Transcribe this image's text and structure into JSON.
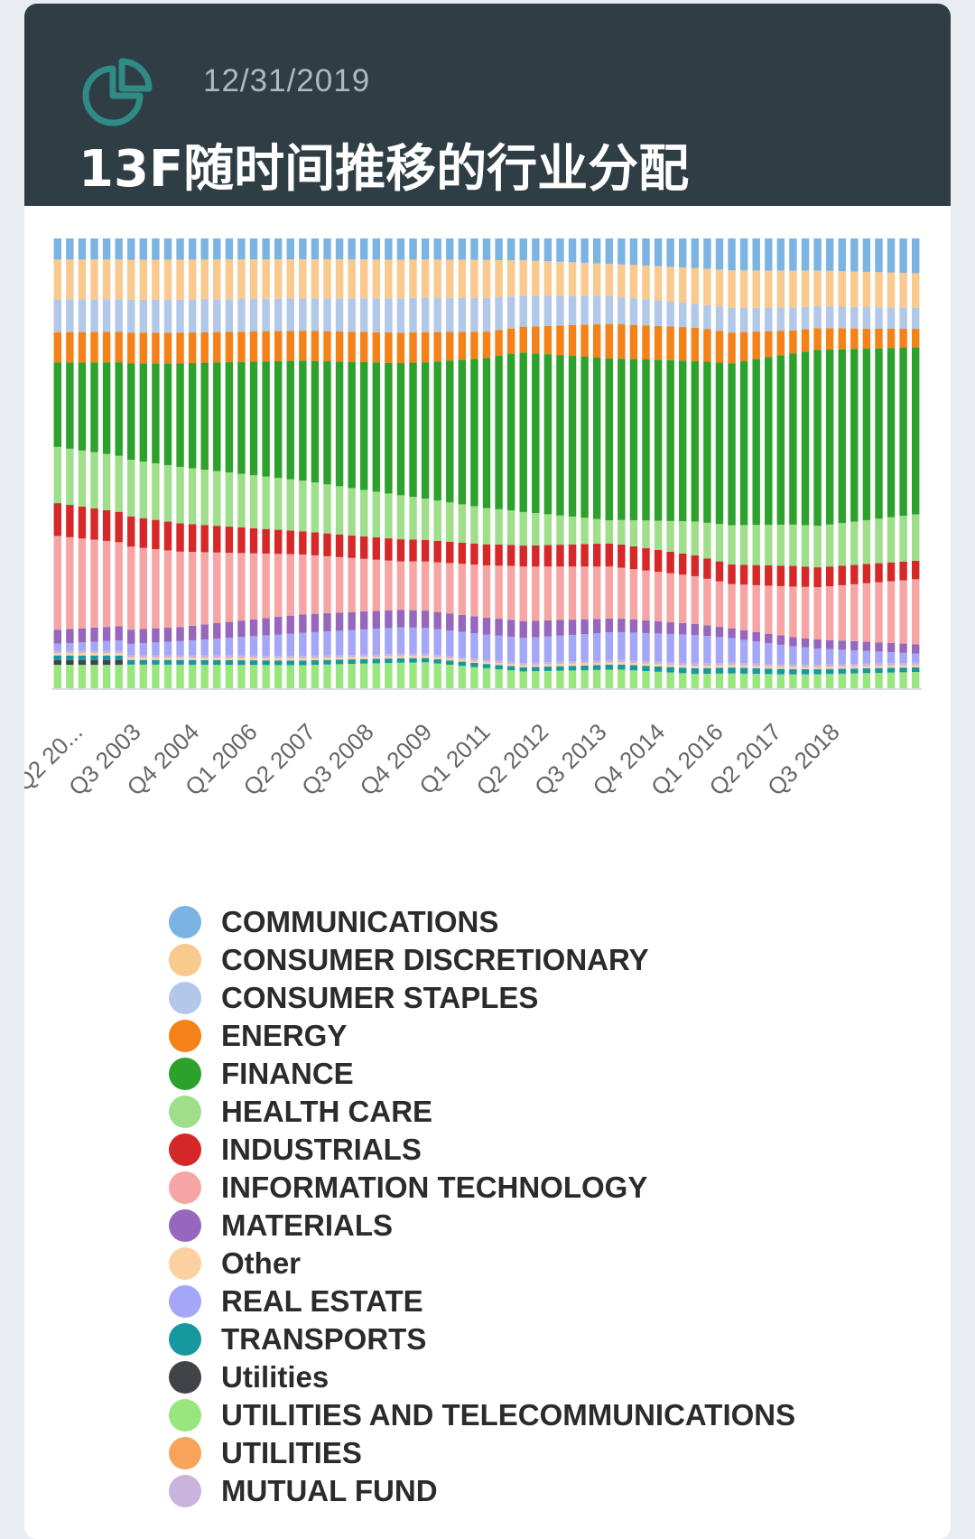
{
  "header": {
    "date": "12/31/2019",
    "title": "13F随时间推移的行业分配",
    "icon": "pie-chart-icon"
  },
  "chart_data": {
    "type": "bar",
    "stacked": true,
    "normalized": true,
    "xlabels": [
      "Q2 20...",
      "Q3 2003",
      "Q4 2004",
      "Q1 2006",
      "Q2 2007",
      "Q3 2008",
      "Q4 2009",
      "Q1 2011",
      "Q2 2012",
      "Q3 2013",
      "Q4 2014",
      "Q1 2016",
      "Q2 2017",
      "Q3 2018"
    ],
    "bar_count": 71,
    "legend_position": "bottom",
    "series": [
      {
        "name": "COMMUNICATIONS",
        "color": "#7bb4e3",
        "anchors": [
          [
            0,
            4.5
          ],
          [
            20,
            4.5
          ],
          [
            45,
            5.5
          ],
          [
            60,
            7
          ],
          [
            70,
            7.5
          ]
        ]
      },
      {
        "name": "CONSUMER DISCRETIONARY",
        "color": "#f9c98d",
        "anchors": [
          [
            0,
            8.5
          ],
          [
            20,
            8.5
          ],
          [
            35,
            9
          ],
          [
            45,
            7
          ],
          [
            60,
            8
          ],
          [
            70,
            7.5
          ]
        ]
      },
      {
        "name": "CONSUMER STAPLES",
        "color": "#b2c8e9",
        "anchors": [
          [
            0,
            7
          ],
          [
            20,
            7
          ],
          [
            30,
            8
          ],
          [
            35,
            8
          ],
          [
            45,
            6
          ],
          [
            52,
            5
          ],
          [
            60,
            5
          ],
          [
            70,
            4.5
          ]
        ]
      },
      {
        "name": "ENERGY",
        "color": "#f58119",
        "anchors": [
          [
            0,
            6.5
          ],
          [
            20,
            6.5
          ],
          [
            30,
            7
          ],
          [
            37,
            6
          ],
          [
            45,
            7.5
          ],
          [
            52,
            7
          ],
          [
            60,
            5
          ],
          [
            70,
            4
          ]
        ]
      },
      {
        "name": "FINANCE",
        "color": "#2ca12c",
        "anchors": [
          [
            0,
            18
          ],
          [
            10,
            22
          ],
          [
            20,
            26
          ],
          [
            28,
            30
          ],
          [
            38,
            38
          ],
          [
            45,
            35
          ],
          [
            55,
            33
          ],
          [
            62,
            39
          ],
          [
            70,
            36
          ]
        ]
      },
      {
        "name": "HEALTH CARE",
        "color": "#9fde8a",
        "anchors": [
          [
            0,
            12
          ],
          [
            10,
            12
          ],
          [
            20,
            11
          ],
          [
            28,
            10
          ],
          [
            38,
            8
          ],
          [
            45,
            5
          ],
          [
            55,
            8
          ],
          [
            60,
            9
          ],
          [
            70,
            10
          ]
        ]
      },
      {
        "name": "INDUSTRIALS",
        "color": "#d62829",
        "anchors": [
          [
            0,
            7
          ],
          [
            10,
            6
          ],
          [
            20,
            5
          ],
          [
            38,
            5
          ],
          [
            46,
            5
          ],
          [
            55,
            4
          ],
          [
            60,
            4.5
          ],
          [
            70,
            4
          ]
        ]
      },
      {
        "name": "INFORMATION TECHNOLOGY",
        "color": "#f7a4a4",
        "anchors": [
          [
            0,
            20
          ],
          [
            10,
            16
          ],
          [
            20,
            13
          ],
          [
            28,
            11
          ],
          [
            38,
            13
          ],
          [
            46,
            11
          ],
          [
            52,
            10
          ],
          [
            55,
            9
          ],
          [
            60,
            11
          ],
          [
            70,
            14
          ]
        ]
      },
      {
        "name": "MATERIALS",
        "color": "#9667bd",
        "anchors": [
          [
            0,
            3
          ],
          [
            10,
            3
          ],
          [
            20,
            4
          ],
          [
            28,
            4
          ],
          [
            38,
            4
          ],
          [
            45,
            3
          ],
          [
            55,
            2
          ],
          [
            60,
            2
          ],
          [
            70,
            2
          ]
        ]
      },
      {
        "name": "Other",
        "color": "#fcd0a0",
        "anchors": [
          [
            0,
            0.5
          ],
          [
            70,
            0.5
          ]
        ]
      },
      {
        "name": "REAL ESTATE",
        "color": "#a4a7f7",
        "anchors": [
          [
            0,
            1.5
          ],
          [
            10,
            3
          ],
          [
            20,
            5
          ],
          [
            28,
            6
          ],
          [
            38,
            6
          ],
          [
            46,
            6
          ],
          [
            52,
            6
          ],
          [
            55,
            5
          ],
          [
            60,
            4
          ],
          [
            70,
            2
          ]
        ]
      },
      {
        "name": "TRANSPORTS",
        "color": "#17979e",
        "anchors": [
          [
            0,
            1
          ],
          [
            20,
            1
          ],
          [
            38,
            1
          ],
          [
            55,
            1.2
          ],
          [
            70,
            1
          ]
        ]
      },
      {
        "name": "Utilities",
        "color": "#424249",
        "anchors": [
          [
            0,
            1
          ],
          [
            5,
            1
          ],
          [
            6,
            0
          ],
          [
            70,
            0
          ]
        ]
      },
      {
        "name": "UTILITIES AND TELECOMMUNICATIONS",
        "color": "#9ae67e",
        "anchors": [
          [
            0,
            5
          ],
          [
            20,
            5
          ],
          [
            30,
            6
          ],
          [
            38,
            4
          ],
          [
            46,
            4
          ],
          [
            52,
            3
          ],
          [
            60,
            3
          ],
          [
            70,
            3.5
          ]
        ]
      },
      {
        "name": "UTILITIES",
        "color": "#f8a35a",
        "anchors": [
          [
            0,
            0
          ],
          [
            70,
            0
          ]
        ]
      },
      {
        "name": "MUTUAL FUND",
        "color": "#c8b4dc",
        "anchors": [
          [
            0,
            0.5
          ],
          [
            70,
            0.5
          ]
        ]
      }
    ]
  }
}
